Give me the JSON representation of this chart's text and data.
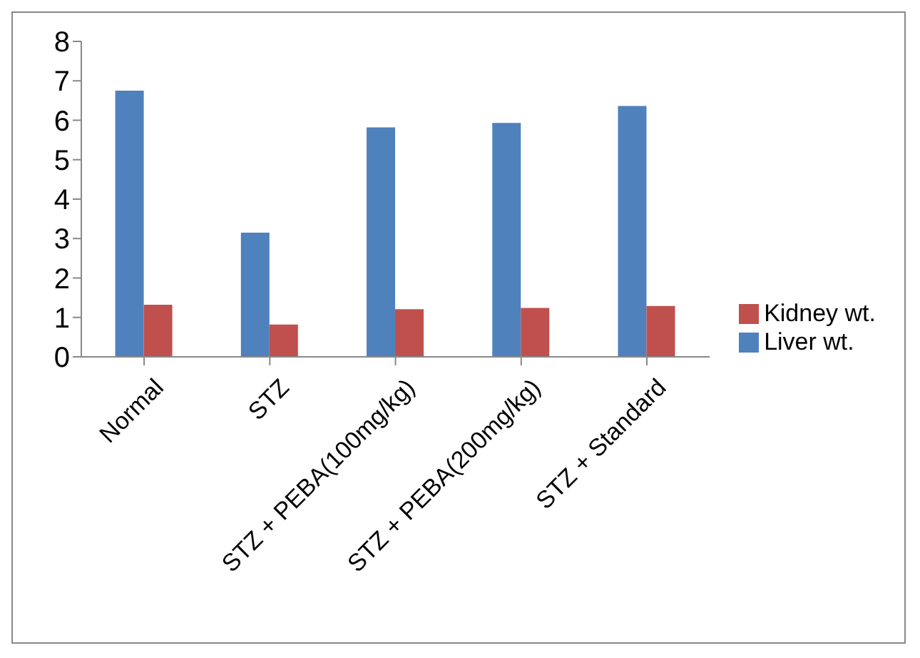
{
  "chart_data": {
    "type": "bar",
    "categories": [
      "Normal",
      "STZ",
      "STZ + PEBA(100mg/kg)",
      "STZ + PEBA(200mg/kg)",
      "STZ + Standard"
    ],
    "series": [
      {
        "name": "Liver wt.",
        "color": "#4f81bd",
        "values": [
          6.75,
          3.15,
          5.82,
          5.93,
          6.36
        ]
      },
      {
        "name": "Kidney wt.",
        "color": "#c0504d",
        "values": [
          1.32,
          0.82,
          1.21,
          1.24,
          1.29
        ]
      }
    ],
    "ylim": [
      0,
      8
    ],
    "yticks": [
      0,
      1,
      2,
      3,
      4,
      5,
      6,
      7,
      8
    ],
    "grid": false,
    "legend": "right"
  }
}
